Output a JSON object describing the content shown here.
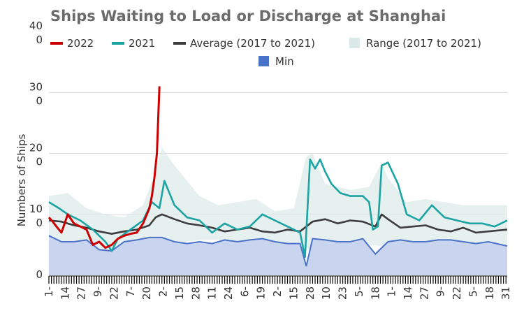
{
  "chart_data": {
    "type": "line",
    "title": "Ships Waiting to Load or Discharge at Shanghai",
    "ylabel": "Numbers of Ships",
    "xlabel": "",
    "ylim": [
      0,
      400
    ],
    "y_ticks": [
      {
        "value": 0,
        "lines": [
          "0"
        ]
      },
      {
        "value": 100,
        "lines": [
          "10",
          "0"
        ]
      },
      {
        "value": 200,
        "lines": [
          "20",
          "0"
        ]
      },
      {
        "value": 300,
        "lines": [
          "30",
          "0"
        ]
      },
      {
        "value": 400,
        "lines": [
          "40",
          "0"
        ]
      }
    ],
    "x_range": [
      0,
      365
    ],
    "x_tick_labels": [
      {
        "x": 0,
        "label": "1-"
      },
      {
        "x": 13,
        "label": "14"
      },
      {
        "x": 26,
        "label": "27"
      },
      {
        "x": 39,
        "label": "9-"
      },
      {
        "x": 52,
        "label": "22"
      },
      {
        "x": 65,
        "label": "7-"
      },
      {
        "x": 78,
        "label": "20"
      },
      {
        "x": 91,
        "label": "2-"
      },
      {
        "x": 104,
        "label": "15"
      },
      {
        "x": 117,
        "label": "28"
      },
      {
        "x": 130,
        "label": "11"
      },
      {
        "x": 143,
        "label": "24"
      },
      {
        "x": 156,
        "label": "6-"
      },
      {
        "x": 169,
        "label": "19"
      },
      {
        "x": 182,
        "label": "2-"
      },
      {
        "x": 195,
        "label": "15"
      },
      {
        "x": 208,
        "label": "28"
      },
      {
        "x": 221,
        "label": "10"
      },
      {
        "x": 234,
        "label": "23"
      },
      {
        "x": 247,
        "label": "5-"
      },
      {
        "x": 260,
        "label": "18"
      },
      {
        "x": 273,
        "label": "1-"
      },
      {
        "x": 286,
        "label": "14"
      },
      {
        "x": 299,
        "label": "27"
      },
      {
        "x": 312,
        "label": "9-"
      },
      {
        "x": 325,
        "label": "22"
      },
      {
        "x": 338,
        "label": "5-"
      },
      {
        "x": 351,
        "label": "18"
      },
      {
        "x": 364,
        "label": "31"
      }
    ],
    "legend": {
      "placement": "top",
      "items": [
        {
          "name": "2022",
          "color": "#cc0000",
          "style": "line"
        },
        {
          "name": "2021",
          "color": "#1ca3a3",
          "style": "line"
        },
        {
          "name": "Average (2017 to 2021)",
          "color": "#3d3d3d",
          "style": "line"
        },
        {
          "name": "Range (2017 to 2021)",
          "color": "#dbe9e8",
          "style": "box"
        },
        {
          "name": "Min",
          "color": "#4a72c8",
          "style": "box"
        }
      ]
    },
    "grid": true,
    "series": [
      {
        "name": "Range (2017 to 2021)",
        "kind": "band",
        "color": "#dbe9e8",
        "x": [
          0,
          15,
          30,
          45,
          60,
          75,
          85,
          90,
          100,
          110,
          120,
          135,
          150,
          165,
          180,
          195,
          205,
          210,
          220,
          240,
          255,
          265,
          270,
          285,
          300,
          315,
          330,
          345,
          365
        ],
        "low": [
          55,
          55,
          50,
          40,
          38,
          50,
          48,
          45,
          50,
          55,
          58,
          58,
          55,
          55,
          52,
          50,
          45,
          40,
          48,
          52,
          50,
          48,
          40,
          45,
          52,
          50,
          48,
          45,
          45
        ],
        "high": [
          130,
          135,
          110,
          100,
          95,
          115,
          170,
          210,
          180,
          155,
          130,
          115,
          120,
          125,
          105,
          110,
          195,
          200,
          150,
          140,
          145,
          185,
          160,
          120,
          125,
          120,
          115,
          115,
          115
        ]
      },
      {
        "name": "Min",
        "kind": "area",
        "color": "#4a72c8",
        "x": [
          0,
          10,
          20,
          30,
          40,
          50,
          60,
          70,
          80,
          90,
          100,
          110,
          120,
          130,
          140,
          150,
          160,
          170,
          180,
          190,
          200,
          205,
          210,
          220,
          230,
          240,
          250,
          260,
          270,
          280,
          290,
          300,
          310,
          320,
          330,
          340,
          350,
          365
        ],
        "y": [
          65,
          55,
          55,
          58,
          42,
          40,
          55,
          58,
          62,
          62,
          55,
          52,
          55,
          52,
          58,
          55,
          58,
          60,
          55,
          52,
          52,
          15,
          60,
          58,
          55,
          55,
          60,
          35,
          55,
          58,
          55,
          55,
          58,
          58,
          55,
          52,
          55,
          48
        ]
      },
      {
        "name": "Average (2017 to 2021)",
        "kind": "line",
        "color": "#3d3d3d",
        "x": [
          0,
          10,
          20,
          30,
          40,
          50,
          60,
          70,
          80,
          85,
          90,
          100,
          110,
          120,
          130,
          140,
          150,
          160,
          170,
          180,
          190,
          200,
          210,
          220,
          230,
          240,
          250,
          260,
          265,
          270,
          280,
          290,
          300,
          310,
          320,
          330,
          340,
          350,
          365
        ],
        "y": [
          90,
          88,
          82,
          78,
          72,
          68,
          72,
          75,
          82,
          95,
          100,
          92,
          85,
          82,
          78,
          72,
          75,
          78,
          72,
          70,
          75,
          72,
          88,
          92,
          85,
          90,
          88,
          80,
          100,
          92,
          78,
          80,
          82,
          75,
          72,
          78,
          70,
          72,
          75
        ]
      },
      {
        "name": "2021",
        "kind": "line",
        "color": "#1ca3a3",
        "x": [
          0,
          8,
          15,
          25,
          35,
          45,
          50,
          55,
          65,
          75,
          82,
          88,
          92,
          100,
          110,
          120,
          130,
          140,
          150,
          160,
          170,
          180,
          190,
          200,
          204,
          208,
          212,
          216,
          220,
          225,
          232,
          240,
          250,
          255,
          258,
          262,
          265,
          270,
          278,
          285,
          295,
          305,
          315,
          325,
          335,
          345,
          355,
          365
        ],
        "y": [
          120,
          110,
          100,
          90,
          75,
          55,
          40,
          60,
          75,
          90,
          120,
          110,
          155,
          115,
          95,
          90,
          70,
          85,
          75,
          80,
          100,
          90,
          80,
          70,
          30,
          190,
          175,
          190,
          170,
          150,
          135,
          130,
          130,
          120,
          75,
          80,
          180,
          185,
          150,
          100,
          90,
          115,
          95,
          90,
          85,
          85,
          80,
          90
        ]
      },
      {
        "name": "2022",
        "kind": "line",
        "color": "#cc0000",
        "x": [
          0,
          3,
          6,
          10,
          15,
          20,
          25,
          30,
          35,
          40,
          45,
          50,
          55,
          60,
          65,
          70,
          75,
          78,
          80,
          82,
          84,
          86,
          88
        ],
        "y": [
          95,
          88,
          80,
          70,
          100,
          85,
          80,
          75,
          50,
          55,
          45,
          50,
          60,
          65,
          68,
          70,
          85,
          100,
          110,
          130,
          160,
          200,
          310
        ]
      }
    ]
  }
}
